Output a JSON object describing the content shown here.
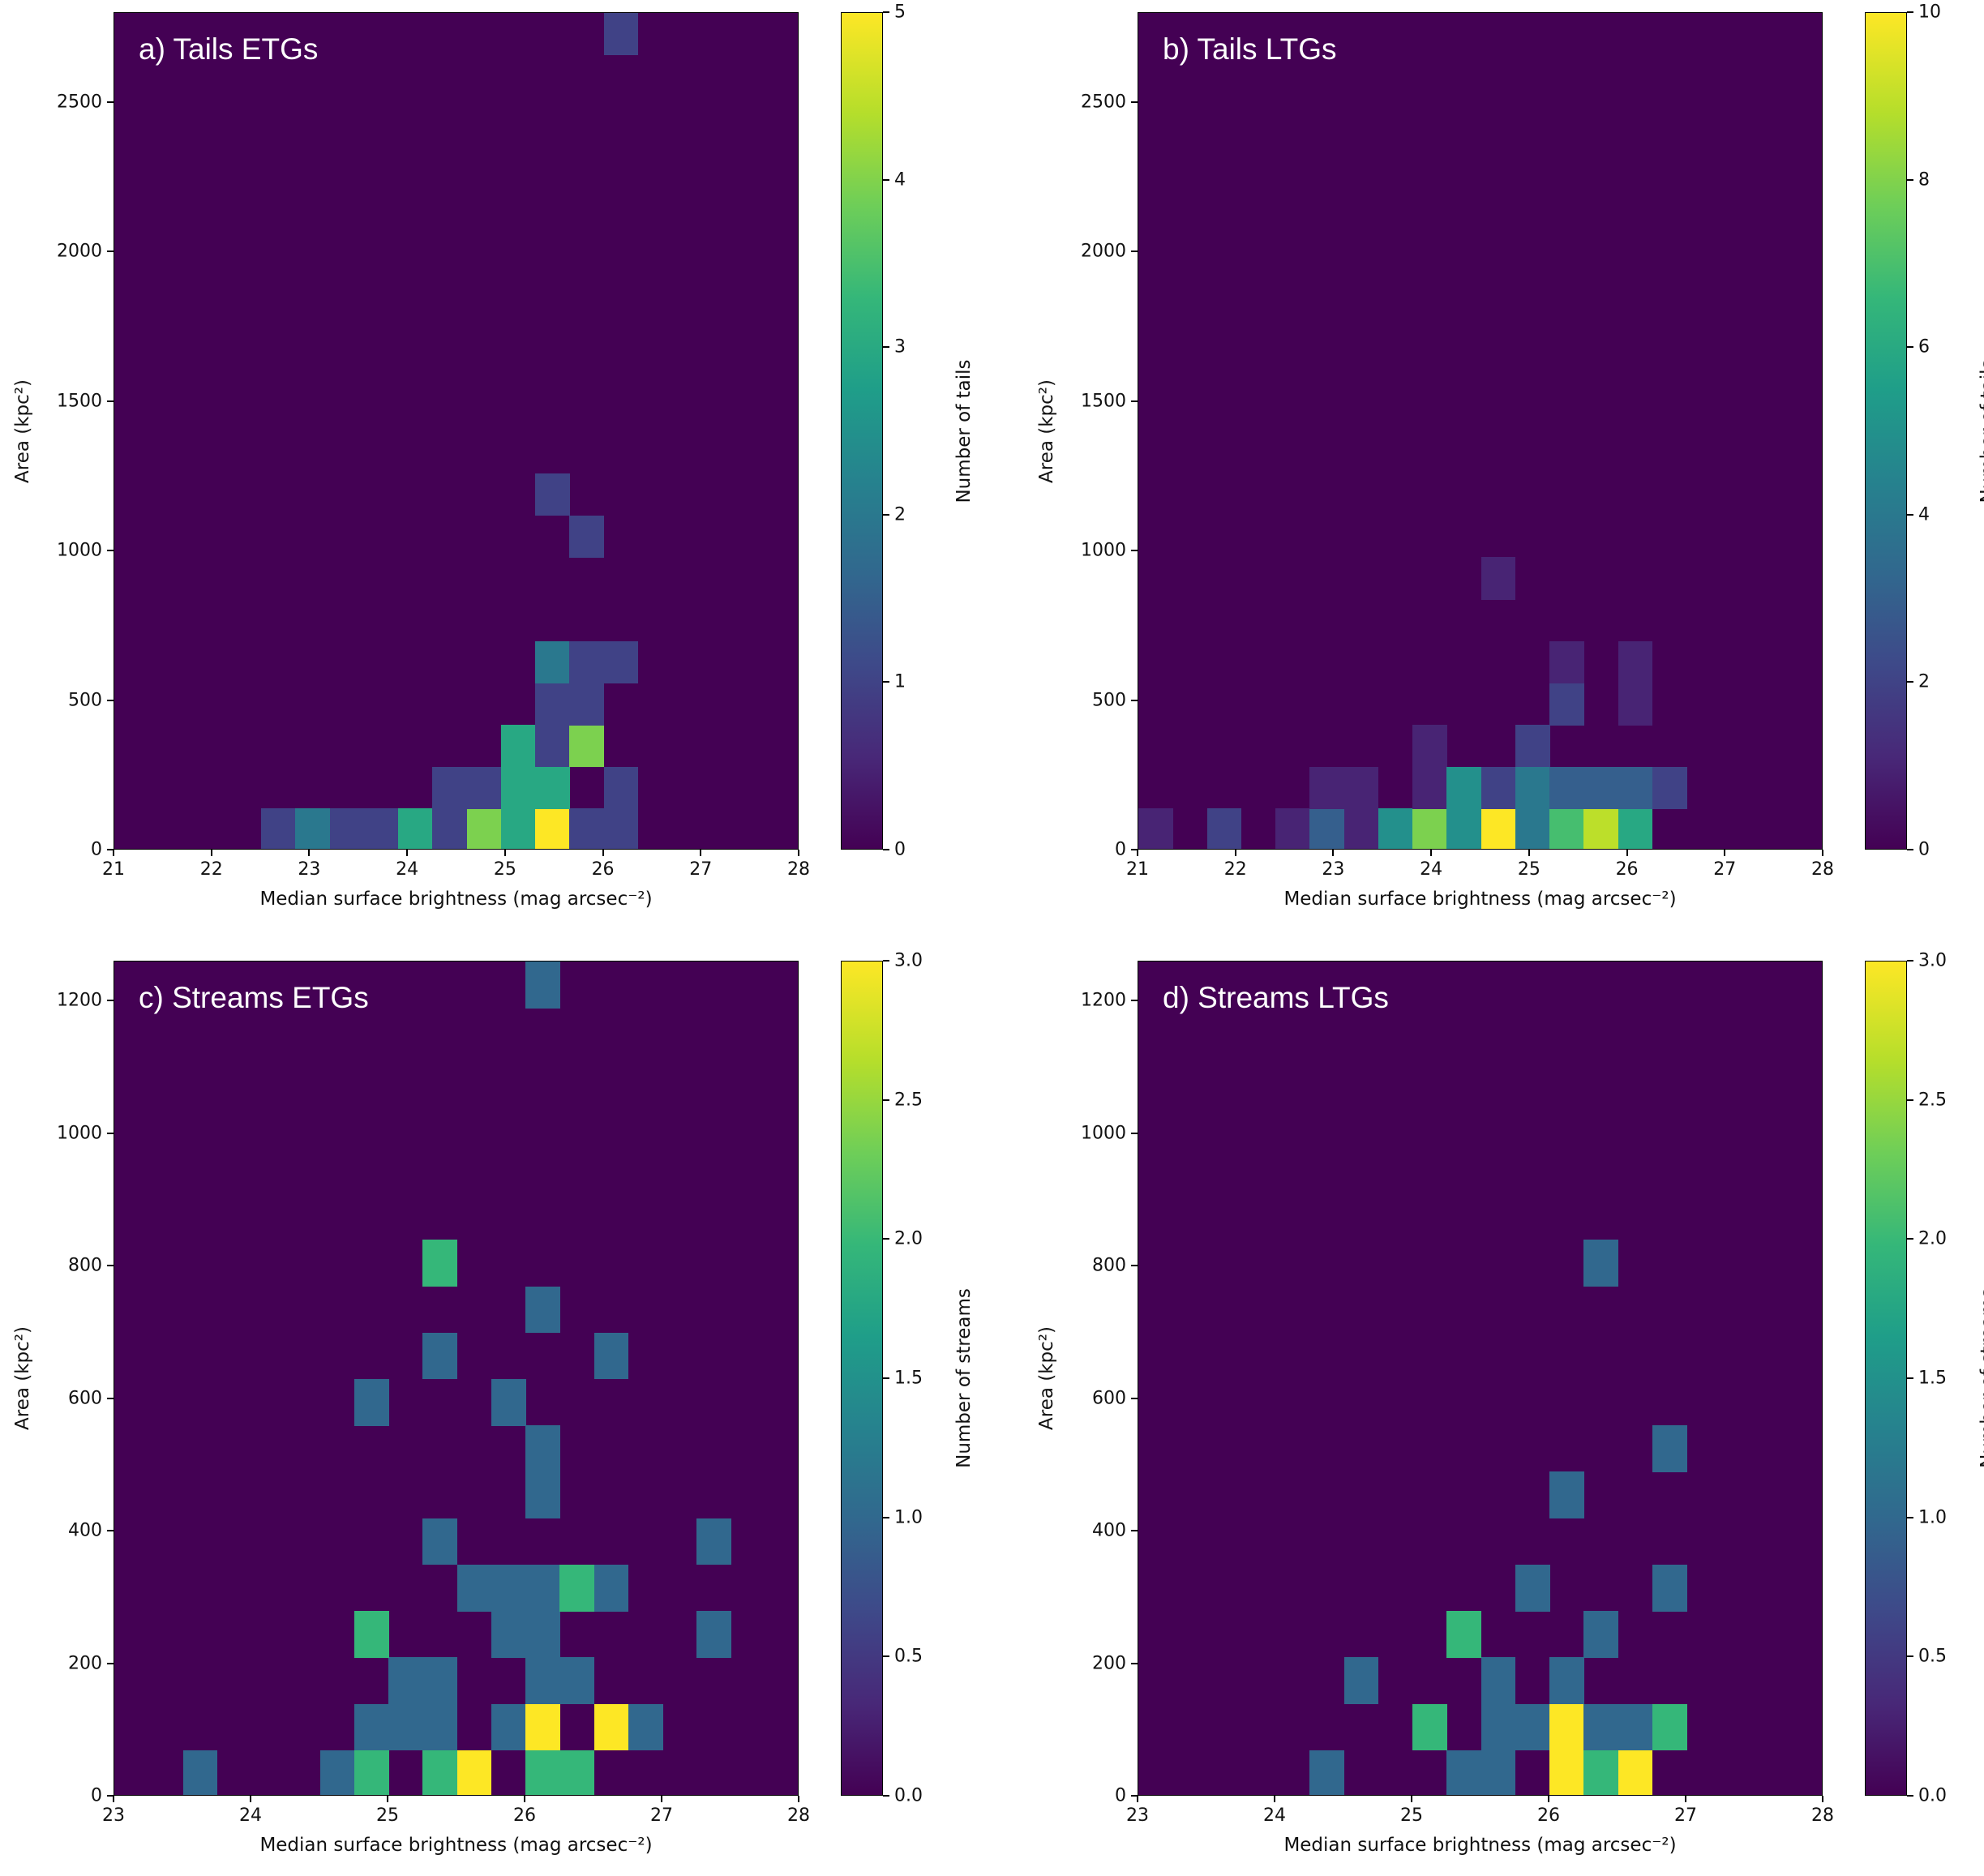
{
  "chart_data": [
    {
      "type": "heatmap",
      "title": "a) Tails ETGs",
      "xlabel": "Median surface brightness (mag arcsec⁻²)",
      "ylabel": "Area (kpc²)",
      "colorbar_label": "Number of tails",
      "xlim": [
        21,
        28
      ],
      "ylim": [
        0,
        2800
      ],
      "xticks": [
        21,
        22,
        23,
        24,
        25,
        26,
        27,
        28
      ],
      "yticks": [
        0,
        500,
        1000,
        1500,
        2000,
        2500
      ],
      "clim": [
        0,
        5
      ],
      "cticks": [
        0,
        1,
        2,
        3,
        4,
        5
      ],
      "bin_width_x": 0.35,
      "bin_height_y": 140,
      "cells": [
        {
          "x": 22.5,
          "y": 0,
          "v": 1
        },
        {
          "x": 22.85,
          "y": 0,
          "v": 2
        },
        {
          "x": 23.2,
          "y": 0,
          "v": 1
        },
        {
          "x": 23.55,
          "y": 0,
          "v": 1
        },
        {
          "x": 23.9,
          "y": 0,
          "v": 3
        },
        {
          "x": 24.25,
          "y": 0,
          "v": 1
        },
        {
          "x": 24.6,
          "y": 0,
          "v": 4
        },
        {
          "x": 24.95,
          "y": 0,
          "v": 3
        },
        {
          "x": 25.3,
          "y": 0,
          "v": 5
        },
        {
          "x": 25.65,
          "y": 0,
          "v": 1
        },
        {
          "x": 26.0,
          "y": 0,
          "v": 1
        },
        {
          "x": 24.25,
          "y": 140,
          "v": 1
        },
        {
          "x": 24.6,
          "y": 140,
          "v": 1
        },
        {
          "x": 24.95,
          "y": 140,
          "v": 3
        },
        {
          "x": 25.3,
          "y": 140,
          "v": 3
        },
        {
          "x": 26.0,
          "y": 140,
          "v": 1
        },
        {
          "x": 24.95,
          "y": 280,
          "v": 3
        },
        {
          "x": 25.3,
          "y": 280,
          "v": 1
        },
        {
          "x": 25.65,
          "y": 280,
          "v": 4
        },
        {
          "x": 25.3,
          "y": 420,
          "v": 1
        },
        {
          "x": 25.65,
          "y": 420,
          "v": 1
        },
        {
          "x": 25.3,
          "y": 560,
          "v": 2
        },
        {
          "x": 25.65,
          "y": 560,
          "v": 1
        },
        {
          "x": 26.0,
          "y": 560,
          "v": 1
        },
        {
          "x": 25.65,
          "y": 980,
          "v": 1
        },
        {
          "x": 25.3,
          "y": 1120,
          "v": 1
        },
        {
          "x": 26.0,
          "y": 2660,
          "v": 1
        }
      ]
    },
    {
      "type": "heatmap",
      "title": "b) Tails LTGs",
      "xlabel": "Median surface brightness (mag arcsec⁻²)",
      "ylabel": "Area (kpc²)",
      "colorbar_label": "Number of tails",
      "xlim": [
        21,
        28
      ],
      "ylim": [
        0,
        2800
      ],
      "xticks": [
        21,
        22,
        23,
        24,
        25,
        26,
        27,
        28
      ],
      "yticks": [
        0,
        500,
        1000,
        1500,
        2000,
        2500
      ],
      "clim": [
        0,
        10
      ],
      "cticks": [
        0,
        2,
        4,
        6,
        8,
        10
      ],
      "bin_width_x": 0.35,
      "bin_height_y": 140,
      "cells": [
        {
          "x": 21.0,
          "y": 0,
          "v": 1
        },
        {
          "x": 21.7,
          "y": 0,
          "v": 2
        },
        {
          "x": 22.4,
          "y": 0,
          "v": 1
        },
        {
          "x": 22.75,
          "y": 0,
          "v": 3
        },
        {
          "x": 23.1,
          "y": 0,
          "v": 1
        },
        {
          "x": 23.45,
          "y": 0,
          "v": 5
        },
        {
          "x": 23.8,
          "y": 0,
          "v": 8
        },
        {
          "x": 24.15,
          "y": 0,
          "v": 5
        },
        {
          "x": 24.5,
          "y": 0,
          "v": 10
        },
        {
          "x": 24.85,
          "y": 0,
          "v": 4
        },
        {
          "x": 25.2,
          "y": 0,
          "v": 7
        },
        {
          "x": 25.55,
          "y": 0,
          "v": 9
        },
        {
          "x": 25.9,
          "y": 0,
          "v": 6
        },
        {
          "x": 22.75,
          "y": 140,
          "v": 1
        },
        {
          "x": 23.1,
          "y": 140,
          "v": 1
        },
        {
          "x": 23.8,
          "y": 140,
          "v": 1
        },
        {
          "x": 24.15,
          "y": 140,
          "v": 5
        },
        {
          "x": 24.5,
          "y": 140,
          "v": 2
        },
        {
          "x": 24.85,
          "y": 140,
          "v": 4
        },
        {
          "x": 25.2,
          "y": 140,
          "v": 3
        },
        {
          "x": 25.55,
          "y": 140,
          "v": 3
        },
        {
          "x": 25.9,
          "y": 140,
          "v": 3
        },
        {
          "x": 26.25,
          "y": 140,
          "v": 2
        },
        {
          "x": 23.8,
          "y": 280,
          "v": 1
        },
        {
          "x": 24.85,
          "y": 280,
          "v": 2
        },
        {
          "x": 25.2,
          "y": 420,
          "v": 2
        },
        {
          "x": 25.9,
          "y": 420,
          "v": 1
        },
        {
          "x": 25.2,
          "y": 560,
          "v": 1
        },
        {
          "x": 25.9,
          "y": 560,
          "v": 1
        },
        {
          "x": 24.5,
          "y": 840,
          "v": 1
        }
      ]
    },
    {
      "type": "heatmap",
      "title": "c) Streams ETGs",
      "xlabel": "Median surface brightness (mag arcsec⁻²)",
      "ylabel": "Area (kpc²)",
      "colorbar_label": "Number of streams",
      "xlim": [
        23,
        28
      ],
      "ylim": [
        0,
        1260
      ],
      "xticks": [
        23,
        24,
        25,
        26,
        27,
        28
      ],
      "yticks": [
        0,
        200,
        400,
        600,
        800,
        1000,
        1200
      ],
      "clim": [
        0,
        3.0
      ],
      "cticks": [
        0.0,
        0.5,
        1.0,
        1.5,
        2.0,
        2.5,
        3.0
      ],
      "bin_width_x": 0.25,
      "bin_height_y": 70,
      "cells": [
        {
          "x": 23.5,
          "y": 0,
          "v": 1
        },
        {
          "x": 24.5,
          "y": 0,
          "v": 1
        },
        {
          "x": 24.75,
          "y": 0,
          "v": 2
        },
        {
          "x": 25.25,
          "y": 0,
          "v": 2
        },
        {
          "x": 25.5,
          "y": 0,
          "v": 3
        },
        {
          "x": 26.0,
          "y": 0,
          "v": 2
        },
        {
          "x": 26.25,
          "y": 0,
          "v": 2
        },
        {
          "x": 24.75,
          "y": 70,
          "v": 1
        },
        {
          "x": 25.0,
          "y": 70,
          "v": 1
        },
        {
          "x": 25.25,
          "y": 70,
          "v": 1
        },
        {
          "x": 25.75,
          "y": 70,
          "v": 1
        },
        {
          "x": 26.0,
          "y": 70,
          "v": 3
        },
        {
          "x": 26.5,
          "y": 70,
          "v": 3
        },
        {
          "x": 26.75,
          "y": 70,
          "v": 1
        },
        {
          "x": 25.0,
          "y": 140,
          "v": 1
        },
        {
          "x": 25.25,
          "y": 140,
          "v": 1
        },
        {
          "x": 26.0,
          "y": 140,
          "v": 1
        },
        {
          "x": 26.25,
          "y": 140,
          "v": 1
        },
        {
          "x": 24.75,
          "y": 210,
          "v": 2
        },
        {
          "x": 25.75,
          "y": 210,
          "v": 1
        },
        {
          "x": 26.0,
          "y": 210,
          "v": 1
        },
        {
          "x": 27.25,
          "y": 210,
          "v": 1
        },
        {
          "x": 25.5,
          "y": 280,
          "v": 1
        },
        {
          "x": 25.75,
          "y": 280,
          "v": 1
        },
        {
          "x": 26.0,
          "y": 280,
          "v": 1
        },
        {
          "x": 26.25,
          "y": 280,
          "v": 2
        },
        {
          "x": 26.5,
          "y": 280,
          "v": 1
        },
        {
          "x": 25.25,
          "y": 350,
          "v": 1
        },
        {
          "x": 27.25,
          "y": 350,
          "v": 1
        },
        {
          "x": 26.0,
          "y": 420,
          "v": 1
        },
        {
          "x": 26.0,
          "y": 490,
          "v": 1
        },
        {
          "x": 24.75,
          "y": 560,
          "v": 1
        },
        {
          "x": 25.75,
          "y": 560,
          "v": 1
        },
        {
          "x": 25.25,
          "y": 630,
          "v": 1
        },
        {
          "x": 26.5,
          "y": 630,
          "v": 1
        },
        {
          "x": 26.0,
          "y": 700,
          "v": 1
        },
        {
          "x": 25.25,
          "y": 770,
          "v": 2
        },
        {
          "x": 26.0,
          "y": 1190,
          "v": 1
        }
      ]
    },
    {
      "type": "heatmap",
      "title": "d) Streams LTGs",
      "xlabel": "Median surface brightness (mag arcsec⁻²)",
      "ylabel": "Area (kpc²)",
      "colorbar_label": "Number of streams",
      "xlim": [
        23,
        28
      ],
      "ylim": [
        0,
        1260
      ],
      "xticks": [
        23,
        24,
        25,
        26,
        27,
        28
      ],
      "yticks": [
        0,
        200,
        400,
        600,
        800,
        1000,
        1200
      ],
      "clim": [
        0,
        3.0
      ],
      "cticks": [
        0.0,
        0.5,
        1.0,
        1.5,
        2.0,
        2.5,
        3.0
      ],
      "bin_width_x": 0.25,
      "bin_height_y": 70,
      "cells": [
        {
          "x": 24.25,
          "y": 0,
          "v": 1
        },
        {
          "x": 25.25,
          "y": 0,
          "v": 1
        },
        {
          "x": 25.5,
          "y": 0,
          "v": 1
        },
        {
          "x": 26.0,
          "y": 0,
          "v": 3
        },
        {
          "x": 26.25,
          "y": 0,
          "v": 2
        },
        {
          "x": 26.5,
          "y": 0,
          "v": 3
        },
        {
          "x": 25.0,
          "y": 70,
          "v": 2
        },
        {
          "x": 25.5,
          "y": 70,
          "v": 1
        },
        {
          "x": 25.75,
          "y": 70,
          "v": 1
        },
        {
          "x": 26.0,
          "y": 70,
          "v": 3
        },
        {
          "x": 26.25,
          "y": 70,
          "v": 1
        },
        {
          "x": 26.5,
          "y": 70,
          "v": 1
        },
        {
          "x": 26.75,
          "y": 70,
          "v": 2
        },
        {
          "x": 24.5,
          "y": 140,
          "v": 1
        },
        {
          "x": 25.5,
          "y": 140,
          "v": 1
        },
        {
          "x": 26.0,
          "y": 140,
          "v": 1
        },
        {
          "x": 25.25,
          "y": 210,
          "v": 2
        },
        {
          "x": 26.25,
          "y": 210,
          "v": 1
        },
        {
          "x": 25.75,
          "y": 280,
          "v": 1
        },
        {
          "x": 26.75,
          "y": 280,
          "v": 1
        },
        {
          "x": 26.0,
          "y": 420,
          "v": 1
        },
        {
          "x": 26.75,
          "y": 490,
          "v": 1
        },
        {
          "x": 26.25,
          "y": 770,
          "v": 1
        }
      ]
    }
  ]
}
